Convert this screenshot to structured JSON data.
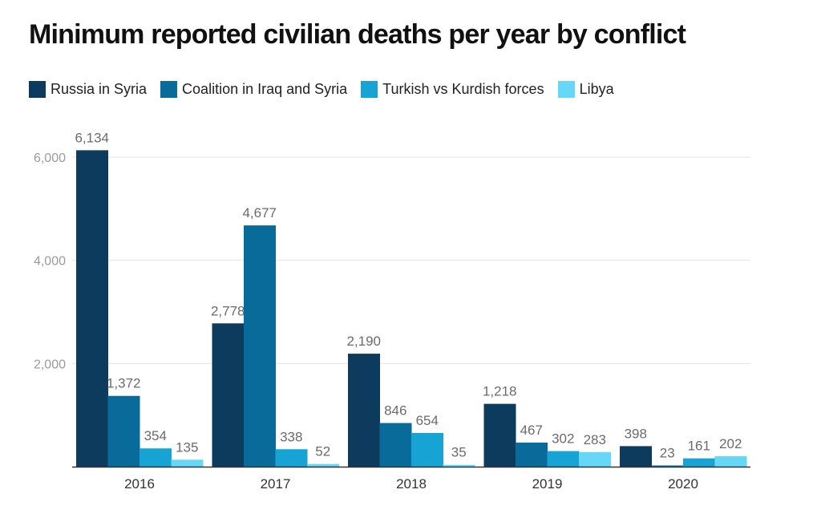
{
  "chart_data": {
    "type": "bar",
    "title": "Minimum reported civilian deaths per year by conflict",
    "xlabel": "",
    "ylabel": "",
    "categories": [
      "2016",
      "2017",
      "2018",
      "2019",
      "2020"
    ],
    "series": [
      {
        "name": "Russia in Syria",
        "color": "#0d3b5e",
        "values": [
          6134,
          2778,
          2190,
          1218,
          398
        ],
        "labels": [
          "6,134",
          "2,778",
          "2,190",
          "1,218",
          "398"
        ]
      },
      {
        "name": "Coalition in Iraq and Syria",
        "color": "#086b9a",
        "values": [
          1372,
          4677,
          846,
          467,
          23
        ],
        "labels": [
          "1,372",
          "4,677",
          "846",
          "467",
          "23"
        ]
      },
      {
        "name": "Turkish vs Kurdish forces",
        "color": "#17a3d4",
        "values": [
          354,
          338,
          654,
          302,
          161
        ],
        "labels": [
          "354",
          "338",
          "654",
          "302",
          "161"
        ]
      },
      {
        "name": "Libya",
        "color": "#67d7f7",
        "values": [
          135,
          52,
          35,
          283,
          202
        ],
        "labels": [
          "135",
          "52",
          "35",
          "283",
          "202"
        ]
      }
    ],
    "ylim": [
      0,
      6500
    ],
    "yticks": [
      {
        "value": 2000,
        "label": "2,000"
      },
      {
        "value": 4000,
        "label": "4,000"
      },
      {
        "value": 6000,
        "label": "6,000"
      }
    ],
    "grid": true,
    "legend_position": "top-left"
  }
}
